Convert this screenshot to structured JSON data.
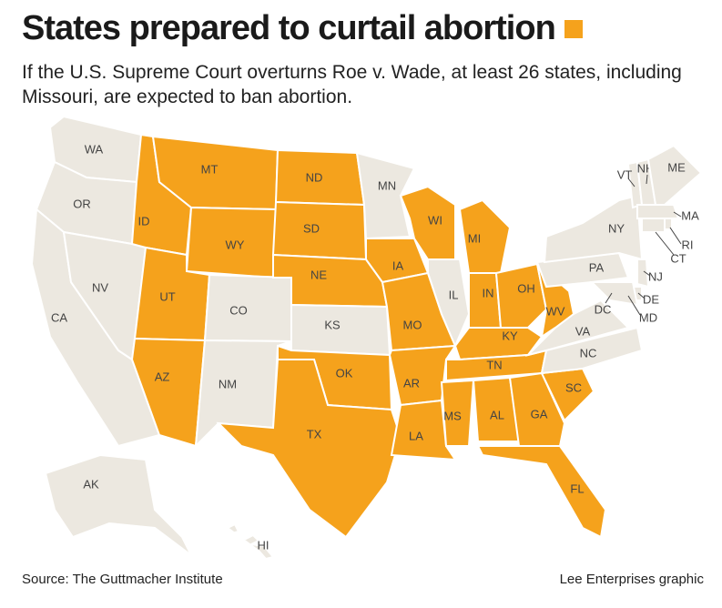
{
  "header": {
    "title": "States prepared to curtail abortion",
    "subtitle": "If the U.S. Supreme Court overturns Roe v. Wade, at least 26 states, including Missouri, are expected to ban abortion."
  },
  "map": {
    "states": [
      {
        "label": "WA",
        "color": "#ece8e0"
      },
      {
        "label": "OR",
        "color": "#ece8e0"
      },
      {
        "label": "CA",
        "color": "#ece8e0"
      },
      {
        "label": "NV",
        "color": "#ece8e0"
      },
      {
        "label": "ID",
        "color": "#f5a21c"
      },
      {
        "label": "MT",
        "color": "#f5a21c"
      },
      {
        "label": "WY",
        "color": "#f5a21c"
      },
      {
        "label": "UT",
        "color": "#f5a21c"
      },
      {
        "label": "AZ",
        "color": "#f5a21c"
      },
      {
        "label": "CO",
        "color": "#ece8e0"
      },
      {
        "label": "NM",
        "color": "#ece8e0"
      },
      {
        "label": "ND",
        "color": "#f5a21c"
      },
      {
        "label": "SD",
        "color": "#f5a21c"
      },
      {
        "label": "NE",
        "color": "#f5a21c"
      },
      {
        "label": "KS",
        "color": "#ece8e0"
      },
      {
        "label": "OK",
        "color": "#f5a21c"
      },
      {
        "label": "TX",
        "color": "#f5a21c"
      },
      {
        "label": "MN",
        "color": "#ece8e0"
      },
      {
        "label": "IA",
        "color": "#f5a21c"
      },
      {
        "label": "MO",
        "color": "#f5a21c"
      },
      {
        "label": "AR",
        "color": "#f5a21c"
      },
      {
        "label": "LA",
        "color": "#f5a21c"
      },
      {
        "label": "WI",
        "color": "#f5a21c"
      },
      {
        "label": "IL",
        "color": "#ece8e0"
      },
      {
        "label": "MI",
        "color": "#f5a21c"
      },
      {
        "label": "IN",
        "color": "#f5a21c"
      },
      {
        "label": "OH",
        "color": "#f5a21c"
      },
      {
        "label": "KY",
        "color": "#f5a21c"
      },
      {
        "label": "TN",
        "color": "#f5a21c"
      },
      {
        "label": "MS",
        "color": "#f5a21c"
      },
      {
        "label": "AL",
        "color": "#f5a21c"
      },
      {
        "label": "GA",
        "color": "#f5a21c"
      },
      {
        "label": "FL",
        "color": "#f5a21c"
      },
      {
        "label": "SC",
        "color": "#f5a21c"
      },
      {
        "label": "NC",
        "color": "#ece8e0"
      },
      {
        "label": "VA",
        "color": "#ece8e0"
      },
      {
        "label": "WV",
        "color": "#f5a21c"
      },
      {
        "label": "PA",
        "color": "#ece8e0"
      },
      {
        "label": "NY",
        "color": "#ece8e0"
      },
      {
        "label": "VT",
        "color": "#ece8e0"
      },
      {
        "label": "NH",
        "color": "#ece8e0"
      },
      {
        "label": "ME",
        "color": "#ece8e0"
      },
      {
        "label": "MA",
        "color": "#ece8e0"
      },
      {
        "label": "RI",
        "color": "#ece8e0"
      },
      {
        "label": "CT",
        "color": "#ece8e0"
      },
      {
        "label": "NJ",
        "color": "#ece8e0"
      },
      {
        "label": "DE",
        "color": "#ece8e0"
      },
      {
        "label": "MD",
        "color": "#ece8e0"
      },
      {
        "label": "DC",
        "color": "#ece8e0"
      },
      {
        "label": "AK",
        "color": "#ece8e0"
      },
      {
        "label": "HI",
        "color": "#ece8e0"
      }
    ]
  },
  "footer": {
    "source": "Source: The Guttmacher Institute",
    "credit": "Lee Enterprises graphic"
  }
}
